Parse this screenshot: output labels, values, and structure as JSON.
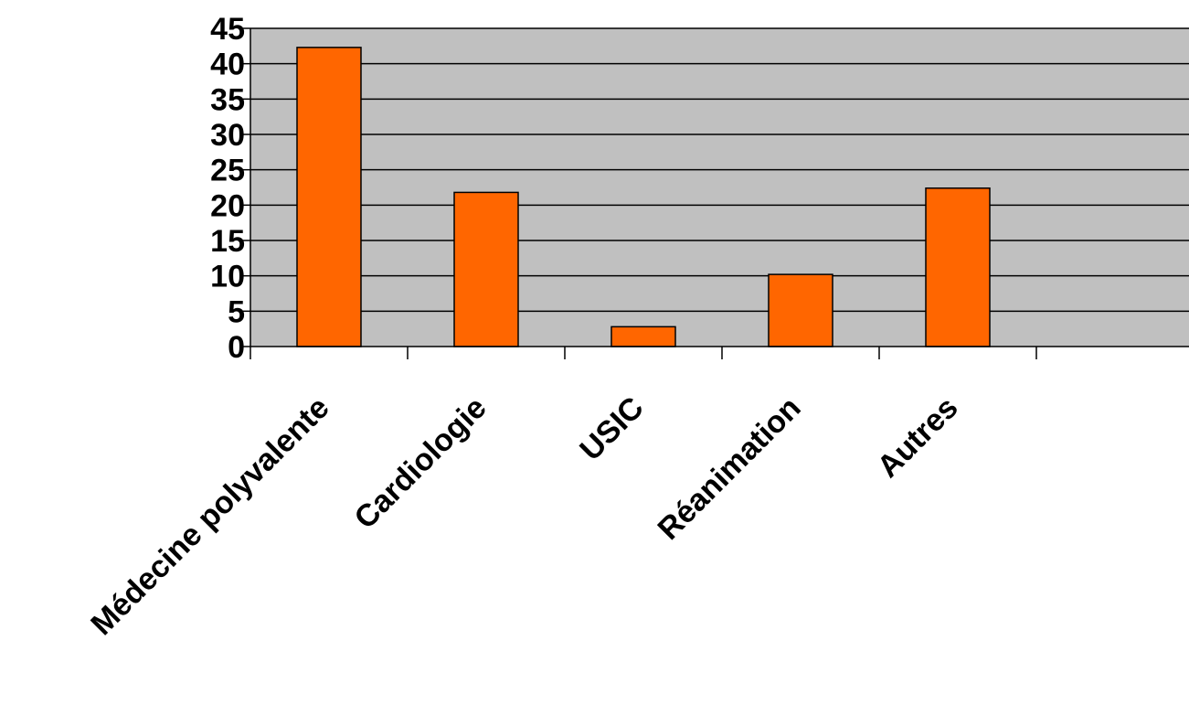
{
  "chart_data": {
    "type": "bar",
    "categories": [
      "Médecine polyvalente",
      "Cardiologie",
      "USIC",
      "Réanimation",
      "Autres"
    ],
    "values": [
      42.3,
      21.8,
      2.8,
      10.2,
      22.4
    ],
    "title": "",
    "xlabel": "",
    "ylabel": "",
    "ylim": [
      0,
      45
    ],
    "yticks": [
      0,
      5,
      10,
      15,
      20,
      25,
      30,
      35,
      40,
      45
    ],
    "grid": true,
    "legend": "none",
    "colors": {
      "bar": "#ff6600",
      "bar_stroke": "#000000",
      "plot_background": "#c0c0c0",
      "gridline": "#000000"
    }
  }
}
